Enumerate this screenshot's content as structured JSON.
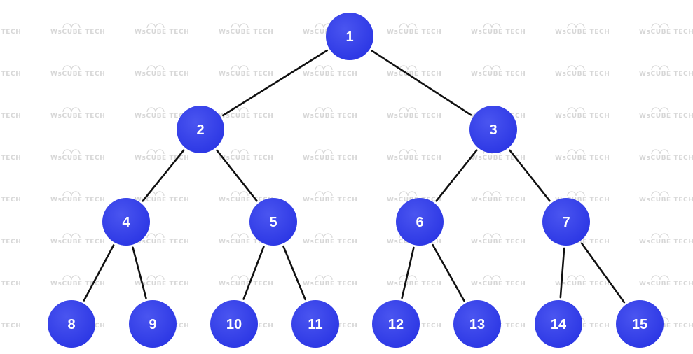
{
  "diagram": {
    "type": "complete-binary-tree",
    "watermark": "WsCUBE TECH",
    "colors": {
      "node_fill": "#2b36e4",
      "node_fill_light": "#4a55f0",
      "node_text": "#ffffff",
      "edge": "#111111",
      "watermark": "#d7d7d7",
      "background": "#ffffff"
    },
    "nodes": [
      {
        "id": "1",
        "label": "1"
      },
      {
        "id": "2",
        "label": "2"
      },
      {
        "id": "3",
        "label": "3"
      },
      {
        "id": "4",
        "label": "4"
      },
      {
        "id": "5",
        "label": "5"
      },
      {
        "id": "6",
        "label": "6"
      },
      {
        "id": "7",
        "label": "7"
      },
      {
        "id": "8",
        "label": "8"
      },
      {
        "id": "9",
        "label": "9"
      },
      {
        "id": "10",
        "label": "10"
      },
      {
        "id": "11",
        "label": "11"
      },
      {
        "id": "12",
        "label": "12"
      },
      {
        "id": "13",
        "label": "13"
      },
      {
        "id": "14",
        "label": "14"
      },
      {
        "id": "15",
        "label": "15"
      }
    ],
    "edges": [
      {
        "from": "1",
        "to": "2"
      },
      {
        "from": "1",
        "to": "3"
      },
      {
        "from": "2",
        "to": "4"
      },
      {
        "from": "2",
        "to": "5"
      },
      {
        "from": "3",
        "to": "6"
      },
      {
        "from": "3",
        "to": "7"
      },
      {
        "from": "4",
        "to": "8"
      },
      {
        "from": "4",
        "to": "9"
      },
      {
        "from": "5",
        "to": "10"
      },
      {
        "from": "5",
        "to": "11"
      },
      {
        "from": "6",
        "to": "12"
      },
      {
        "from": "6",
        "to": "13"
      },
      {
        "from": "7",
        "to": "14"
      },
      {
        "from": "7",
        "to": "15"
      }
    ]
  }
}
